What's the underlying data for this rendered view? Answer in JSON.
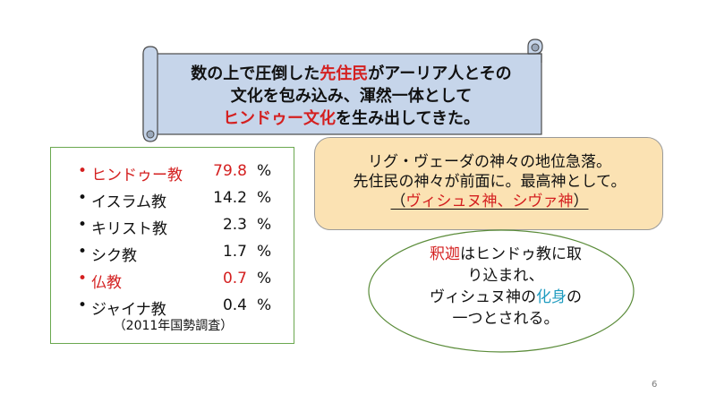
{
  "banner": {
    "line1_a": "数の上で圧倒した",
    "line1_b": "先住民",
    "line1_c": "がアーリア人とその",
    "line2": "文化を包み込み、渾然一体として",
    "line3_a": "ヒンドゥー文化",
    "line3_b": "を生み出してきた。"
  },
  "religions": [
    {
      "bullet": "•",
      "name": "ヒンドゥー教",
      "value": "79.8",
      "unit": "%",
      "highlight": true
    },
    {
      "bullet": "•",
      "name": "イスラム教",
      "value": "14.2",
      "unit": "%",
      "highlight": false
    },
    {
      "bullet": "•",
      "name": "キリスト教",
      "value": "2.3",
      "unit": "%",
      "highlight": false
    },
    {
      "bullet": "•",
      "name": "シク教",
      "value": "1.7",
      "unit": "%",
      "highlight": false
    },
    {
      "bullet": "•",
      "name": "仏教",
      "value": "0.7",
      "unit": "%",
      "highlight": true
    },
    {
      "bullet": "•",
      "name": "ジャイナ教",
      "value": "0.4",
      "unit": "%",
      "highlight": false
    }
  ],
  "census_note": "（2011年国勢調査）",
  "vedic_box": {
    "line1": "リグ・ヴェーダの神々の地位急落。",
    "line2": "先住民の神々が前面に。最高神として。",
    "line3_open": "（",
    "line3_red": "ヴィシュヌ神、シヴァ神",
    "line3_close": "）"
  },
  "buddha_ellipse": {
    "line1_red": "釈迦",
    "line1_rest": "はヒンドゥ教に取",
    "line2": "り込まれ、",
    "line3_a": "ヴィシュヌ神の",
    "line3_teal": "化身",
    "line3_b": "の",
    "line4": "一つとされる。"
  },
  "page_number": "6",
  "colors": {
    "scroll_fill": "#c6d5ea",
    "scroll_stroke": "#4a4a4a",
    "list_border": "#6aa84f",
    "peach_fill": "#fbe2b3",
    "ellipse_border": "#5b8c3a",
    "red_text": "#d42020",
    "teal_text": "#1f9cc0"
  }
}
